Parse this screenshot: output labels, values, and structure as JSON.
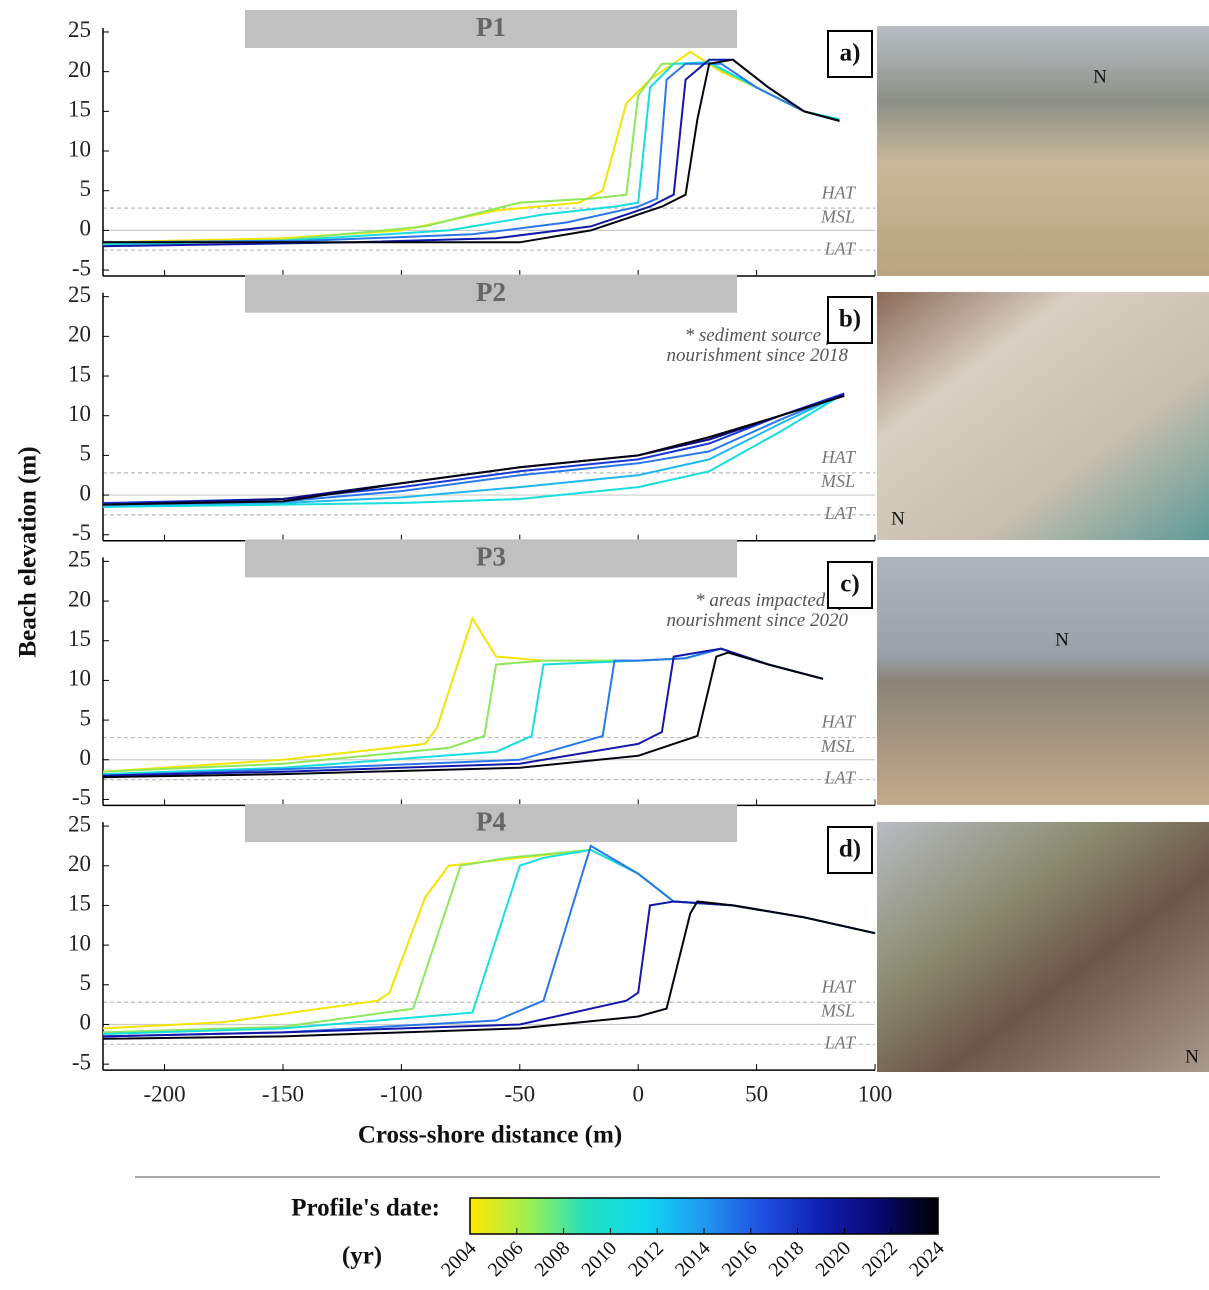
{
  "chart_data": [
    {
      "type": "line",
      "title": "P1",
      "xlim": [
        -226,
        100
      ],
      "ylim": [
        -5.75,
        25.5
      ],
      "xticks": [
        -200,
        -150,
        -100,
        -50,
        0,
        50,
        100
      ],
      "yticks": [
        25,
        20,
        15,
        10,
        5,
        0,
        -5
      ],
      "reference_lines": [
        {
          "label": "HAT",
          "value": 2.8
        },
        {
          "label": "MSL",
          "value": 0
        },
        {
          "label": "LAT",
          "value": -2.5
        }
      ],
      "series": [
        {
          "color": "#f5e400",
          "x": [
            -226,
            -150,
            -100,
            -60,
            -25,
            -15,
            -5,
            5,
            22,
            35,
            50,
            70,
            85
          ],
          "values": [
            -1.5,
            -1,
            0,
            2.5,
            3.5,
            5,
            16,
            19,
            22.5,
            20,
            18,
            15,
            14
          ]
        },
        {
          "color": "#8ee85a",
          "x": [
            -226,
            -150,
            -90,
            -50,
            -20,
            -5,
            0,
            10,
            30,
            50,
            70,
            85
          ],
          "values": [
            -1.8,
            -1.2,
            0.5,
            3.5,
            4,
            4.5,
            17,
            21,
            21,
            18,
            15,
            14
          ]
        },
        {
          "color": "#18dede",
          "x": [
            -226,
            -150,
            -80,
            -40,
            -10,
            0,
            5,
            15,
            30,
            50,
            70,
            85
          ],
          "values": [
            -1.8,
            -1.3,
            0,
            2,
            3,
            3.5,
            18,
            21,
            21.2,
            18,
            15,
            14
          ]
        },
        {
          "color": "#2a78ec",
          "x": [
            -226,
            -140,
            -70,
            -30,
            0,
            8,
            12,
            20,
            35,
            50,
            70,
            85
          ],
          "values": [
            -1.5,
            -1.3,
            -0.5,
            1,
            3,
            4,
            19,
            21,
            21,
            18,
            15,
            13.8
          ]
        },
        {
          "color": "#1218a8",
          "x": [
            -226,
            -120,
            -60,
            -20,
            5,
            15,
            20,
            30,
            40,
            55,
            70,
            85
          ],
          "values": [
            -2,
            -1.5,
            -1,
            0.5,
            3,
            4.5,
            19,
            21.5,
            21.5,
            18,
            15,
            13.8
          ]
        },
        {
          "color": "#050510",
          "x": [
            -226,
            -100,
            -50,
            -20,
            10,
            20,
            25,
            30,
            40,
            55,
            70,
            85
          ],
          "values": [
            -1.5,
            -1.5,
            -1.5,
            0,
            3,
            4.5,
            14,
            21,
            21.5,
            18,
            15,
            13.8
          ]
        }
      ]
    },
    {
      "type": "line",
      "title": "P2",
      "xlim": [
        -226,
        100
      ],
      "ylim": [
        -5.75,
        25.5
      ],
      "xticks": [
        -200,
        -150,
        -100,
        -50,
        0,
        50,
        100
      ],
      "yticks": [
        25,
        20,
        15,
        10,
        5,
        0,
        -5
      ],
      "reference_lines": [
        {
          "label": "HAT",
          "value": 2.8
        },
        {
          "label": "MSL",
          "value": 0
        },
        {
          "label": "LAT",
          "value": -2.5
        }
      ],
      "annotation": [
        "* sediment source for",
        "nourishment since 2018"
      ],
      "series": [
        {
          "color": "#18dede",
          "x": [
            -226,
            -150,
            -100,
            -50,
            0,
            30,
            60,
            87
          ],
          "values": [
            -1.5,
            -1.2,
            -1,
            -0.5,
            1,
            3,
            8,
            12.8
          ]
        },
        {
          "color": "#20b8f0",
          "x": [
            -226,
            -150,
            -100,
            -50,
            0,
            30,
            60,
            87
          ],
          "values": [
            -1.3,
            -1,
            -0.3,
            1,
            2.5,
            4.5,
            9,
            12.8
          ]
        },
        {
          "color": "#2a78ec",
          "x": [
            -226,
            -150,
            -100,
            -50,
            0,
            30,
            60,
            87
          ],
          "values": [
            -1.2,
            -0.8,
            0.5,
            2.5,
            4,
            5.5,
            9.5,
            12.8
          ]
        },
        {
          "color": "#1838d8",
          "x": [
            -226,
            -150,
            -100,
            -50,
            0,
            30,
            60,
            87
          ],
          "values": [
            -1,
            -0.5,
            1,
            3,
            4.5,
            6.5,
            10,
            12.8
          ]
        },
        {
          "color": "#0c0c80",
          "x": [
            -226,
            -150,
            -100,
            -50,
            0,
            30,
            60,
            87
          ],
          "values": [
            -1.2,
            -0.5,
            1.5,
            3.5,
            5,
            7,
            10,
            12.6
          ]
        },
        {
          "color": "#050510",
          "x": [
            -226,
            -150,
            -100,
            -50,
            0,
            30,
            60,
            87
          ],
          "values": [
            -1.2,
            -0.8,
            1.5,
            3.5,
            5,
            7.3,
            10,
            12.5
          ]
        }
      ]
    },
    {
      "type": "line",
      "title": "P3",
      "xlim": [
        -226,
        100
      ],
      "ylim": [
        -5.75,
        25.5
      ],
      "xticks": [
        -200,
        -150,
        -100,
        -50,
        0,
        50,
        100
      ],
      "yticks": [
        25,
        20,
        15,
        10,
        5,
        0,
        -5
      ],
      "reference_lines": [
        {
          "label": "HAT",
          "value": 2.8
        },
        {
          "label": "MSL",
          "value": 0
        },
        {
          "label": "LAT",
          "value": -2.5
        }
      ],
      "annotation": [
        "* areas impacted by",
        "nourishment since 2020"
      ],
      "series": [
        {
          "color": "#f5e400",
          "x": [
            -226,
            -150,
            -90,
            -85,
            -70,
            -60,
            -40,
            0,
            20,
            35,
            55,
            78
          ],
          "values": [
            -1.5,
            0,
            2,
            4,
            17.8,
            13,
            12.5,
            12.5,
            12.8,
            14,
            12,
            10.2
          ]
        },
        {
          "color": "#8ee85a",
          "x": [
            -226,
            -150,
            -80,
            -65,
            -60,
            -40,
            0,
            20,
            35,
            55,
            78
          ],
          "values": [
            -1.5,
            -0.5,
            1.5,
            3,
            12,
            12.5,
            12.5,
            12.8,
            14,
            12,
            10.2
          ]
        },
        {
          "color": "#18dede",
          "x": [
            -226,
            -150,
            -60,
            -45,
            -40,
            0,
            20,
            35,
            55,
            78
          ],
          "values": [
            -1.8,
            -1,
            1,
            3,
            12,
            12.5,
            12.8,
            14,
            12,
            10.2
          ]
        },
        {
          "color": "#2a78ec",
          "x": [
            -226,
            -150,
            -50,
            -15,
            -10,
            0,
            20,
            35,
            55,
            78
          ],
          "values": [
            -2,
            -1.2,
            0,
            3,
            12.5,
            12.5,
            12.8,
            14,
            12,
            10.2
          ]
        },
        {
          "color": "#1218a8",
          "x": [
            -226,
            -150,
            -50,
            0,
            10,
            15,
            25,
            35,
            55,
            78
          ],
          "values": [
            -2,
            -1.5,
            -0.5,
            2,
            3.5,
            13,
            13.5,
            14,
            12,
            10.2
          ]
        },
        {
          "color": "#050510",
          "x": [
            -226,
            -150,
            -50,
            0,
            25,
            33,
            38,
            55,
            78
          ],
          "values": [
            -2.2,
            -1.8,
            -1,
            0.5,
            3,
            13,
            13.5,
            12,
            10.2
          ]
        }
      ]
    },
    {
      "type": "line",
      "title": "P4",
      "xlim": [
        -226,
        100
      ],
      "ylim": [
        -5.75,
        25.5
      ],
      "xticks": [
        -200,
        -150,
        -100,
        -50,
        0,
        50,
        100
      ],
      "yticks": [
        25,
        20,
        15,
        10,
        5,
        0,
        -5
      ],
      "reference_lines": [
        {
          "label": "HAT",
          "value": 2.8
        },
        {
          "label": "MSL",
          "value": 0
        },
        {
          "label": "LAT",
          "value": -2.5
        }
      ],
      "series": [
        {
          "color": "#f5e400",
          "x": [
            -226,
            -175,
            -110,
            -105,
            -90,
            -80,
            -50,
            -20,
            0,
            15,
            40,
            70,
            100
          ],
          "values": [
            -0.5,
            0.3,
            3,
            4,
            16,
            20,
            21,
            22,
            19,
            15.5,
            15,
            13.5,
            11.5
          ]
        },
        {
          "color": "#8ee85a",
          "x": [
            -226,
            -150,
            -95,
            -75,
            -55,
            -20,
            0,
            15,
            40,
            70,
            100
          ],
          "values": [
            -1,
            -0.3,
            2,
            20,
            21,
            22,
            19,
            15.5,
            15,
            13.5,
            11.5
          ]
        },
        {
          "color": "#18dede",
          "x": [
            -226,
            -150,
            -70,
            -50,
            -40,
            -20,
            0,
            15,
            40,
            70,
            100
          ],
          "values": [
            -1.2,
            -0.5,
            1.5,
            20,
            21,
            22,
            19,
            15.5,
            15,
            13.5,
            11.5
          ]
        },
        {
          "color": "#2a78ec",
          "x": [
            -226,
            -150,
            -60,
            -40,
            -20,
            0,
            15,
            40,
            70,
            100
          ],
          "values": [
            -1.5,
            -1,
            0.5,
            3,
            22.5,
            19,
            15.5,
            15,
            13.5,
            11.5
          ]
        },
        {
          "color": "#1218a8",
          "x": [
            -226,
            -150,
            -50,
            -5,
            0,
            5,
            15,
            40,
            70,
            100
          ],
          "values": [
            -1.5,
            -1,
            0,
            3,
            4,
            15,
            15.5,
            15,
            13.5,
            11.5
          ]
        },
        {
          "color": "#050510",
          "x": [
            -226,
            -150,
            -50,
            0,
            12,
            22,
            25,
            40,
            70,
            100
          ],
          "values": [
            -1.8,
            -1.5,
            -0.5,
            1,
            2,
            14,
            15.5,
            15,
            13.5,
            11.5
          ]
        }
      ]
    }
  ],
  "ylabel": "Beach elevation (m)",
  "xlabel": "Cross-shore distance (m)",
  "photo_labels": [
    "a)",
    "b)",
    "c)",
    "d)"
  ],
  "north": "N",
  "colorbar": {
    "title": "Profile's date:",
    "unit": "(yr)",
    "lim": [
      2004,
      2024
    ],
    "ticks": [
      2004,
      2006,
      2008,
      2010,
      2012,
      2014,
      2016,
      2018,
      2020,
      2022,
      2024
    ],
    "colors": [
      "#ffe800",
      "#9ef050",
      "#20e0c0",
      "#10d8f0",
      "#2098f0",
      "#2050e0",
      "#1020b0",
      "#080870",
      "#000000"
    ]
  }
}
